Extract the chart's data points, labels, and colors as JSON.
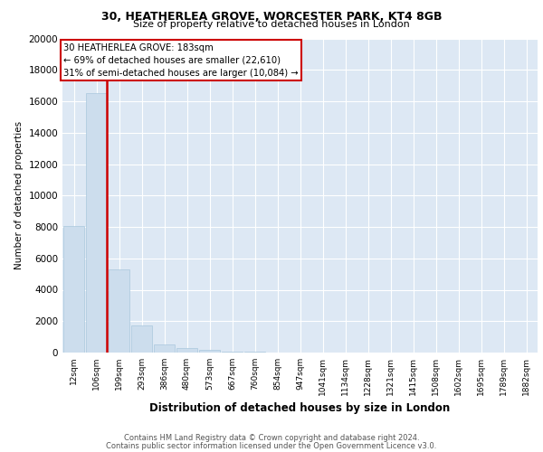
{
  "title1": "30, HEATHERLEA GROVE, WORCESTER PARK, KT4 8GB",
  "title2": "Size of property relative to detached houses in London",
  "xlabel": "Distribution of detached houses by size in London",
  "ylabel": "Number of detached properties",
  "bar_labels": [
    "12sqm",
    "106sqm",
    "199sqm",
    "293sqm",
    "386sqm",
    "480sqm",
    "573sqm",
    "667sqm",
    "760sqm",
    "854sqm",
    "947sqm",
    "1041sqm",
    "1134sqm",
    "1228sqm",
    "1321sqm",
    "1415sqm",
    "1508sqm",
    "1602sqm",
    "1695sqm",
    "1789sqm",
    "1882sqm"
  ],
  "bar_values": [
    8050,
    16500,
    5300,
    1700,
    500,
    290,
    150,
    70,
    40,
    20,
    10,
    5,
    3,
    2,
    1,
    1,
    1,
    1,
    1,
    1,
    1
  ],
  "bar_color": "#ccdded",
  "bar_edge_color": "#aac8dd",
  "background_color": "#dde8f4",
  "grid_color": "#ffffff",
  "annotation_text1": "30 HEATHERLEA GROVE: 183sqm",
  "annotation_text2": "← 69% of detached houses are smaller (22,610)",
  "annotation_text3": "31% of semi-detached houses are larger (10,084) →",
  "annotation_box_color": "#ffffff",
  "annotation_box_edge": "#cc0000",
  "red_line_color": "#cc0000",
  "ylim": [
    0,
    20000
  ],
  "yticks": [
    0,
    2000,
    4000,
    6000,
    8000,
    10000,
    12000,
    14000,
    16000,
    18000,
    20000
  ],
  "footer1": "Contains HM Land Registry data © Crown copyright and database right 2024.",
  "footer2": "Contains public sector information licensed under the Open Government Licence v3.0."
}
